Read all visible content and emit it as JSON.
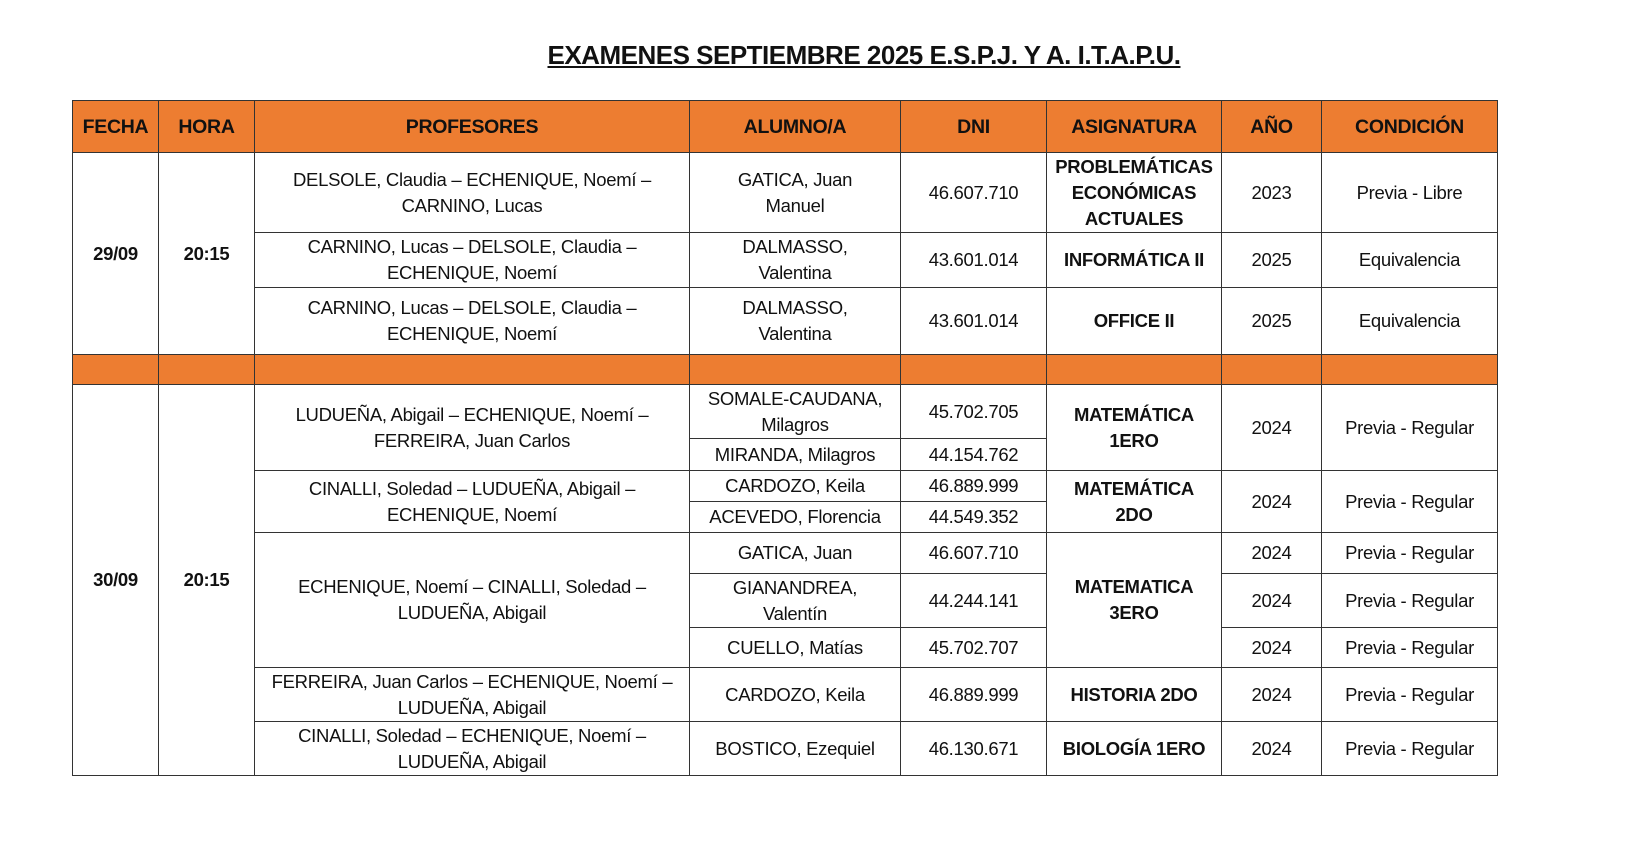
{
  "title": "EXAMENES SEPTIEMBRE 2025 E.S.P.J. Y A. I.T.A.P.U.",
  "header_color": "#ED7D31",
  "columns": [
    "FECHA",
    "HORA",
    "PROFESORES",
    "ALUMNO/A",
    "DNI",
    "ASIGNATURA",
    "AÑO",
    "CONDICIÓN"
  ],
  "day1": {
    "fecha": "29/09",
    "hora": "20:15",
    "rows": [
      {
        "profesores": "DELSOLE, Claudia – ECHENIQUE, Noemí – CARNINO, Lucas",
        "alumno": "GATICA, Juan Manuel",
        "dni": "46.607.710",
        "asignatura": "PROBLEMÁTICAS ECONÓMICAS ACTUALES",
        "anio": "2023",
        "condicion": "Previa - Libre"
      },
      {
        "profesores": "CARNINO, Lucas –  DELSOLE, Claudia – ECHENIQUE, Noemí",
        "alumno": "DALMASSO, Valentina",
        "dni": "43.601.014",
        "asignatura": "INFORMÁTICA II",
        "anio": "2025",
        "condicion": "Equivalencia"
      },
      {
        "profesores": "CARNINO, Lucas –  DELSOLE, Claudia – ECHENIQUE, Noemí",
        "alumno": "DALMASSO, Valentina",
        "dni": "43.601.014",
        "asignatura": "OFFICE II",
        "anio": "2025",
        "condicion": "Equivalencia"
      }
    ]
  },
  "day2": {
    "fecha": "30/09",
    "hora": "20:15",
    "groups": [
      {
        "profesores": "LUDUEÑA, Abigail – ECHENIQUE, Noemí – FERREIRA, Juan Carlos",
        "asignatura": "MATEMÁTICA 1ERO",
        "anio": "2024",
        "condicion": "Previa - Regular",
        "alumnos": [
          {
            "nombre": "SOMALE-CAUDANA, Milagros",
            "dni": "45.702.705"
          },
          {
            "nombre": "MIRANDA, Milagros",
            "dni": "44.154.762"
          }
        ]
      },
      {
        "profesores": "CINALLI, Soledad – LUDUEÑA, Abigail – ECHENIQUE, Noemí",
        "asignatura": "MATEMÁTICA 2DO",
        "anio": "2024",
        "condicion": "Previa - Regular",
        "alumnos": [
          {
            "nombre": "CARDOZO, Keila",
            "dni": "46.889.999"
          },
          {
            "nombre": "ACEVEDO, Florencia",
            "dni": "44.549.352"
          }
        ]
      },
      {
        "profesores": "ECHENIQUE, Noemí – CINALLI, Soledad – LUDUEÑA, Abigail",
        "asignatura": "MATEMATICA 3ERO",
        "alumnos": [
          {
            "nombre": "GATICA, Juan",
            "dni": "46.607.710",
            "anio": "2024",
            "condicion": "Previa - Regular"
          },
          {
            "nombre": "GIANANDREA, Valentín",
            "dni": "44.244.141",
            "anio": "2024",
            "condicion": "Previa - Regular"
          },
          {
            "nombre": "CUELLO, Matías",
            "dni": "45.702.707",
            "anio": "2024",
            "condicion": "Previa - Regular"
          }
        ]
      },
      {
        "profesores": "FERREIRA, Juan Carlos – ECHENIQUE, Noemí – LUDUEÑA, Abigail",
        "asignatura": "HISTORIA 2DO",
        "anio": "2024",
        "condicion": "Previa - Regular",
        "alumnos": [
          {
            "nombre": "CARDOZO, Keila",
            "dni": "46.889.999"
          }
        ]
      },
      {
        "profesores": "CINALLI, Soledad –   ECHENIQUE, Noemí – LUDUEÑA, Abigail",
        "asignatura": "BIOLOGÍA 1ERO",
        "anio": "2024",
        "condicion": "Previa - Regular",
        "alumnos": [
          {
            "nombre": "BOSTICO, Ezequiel",
            "dni": "46.130.671"
          }
        ]
      }
    ]
  }
}
